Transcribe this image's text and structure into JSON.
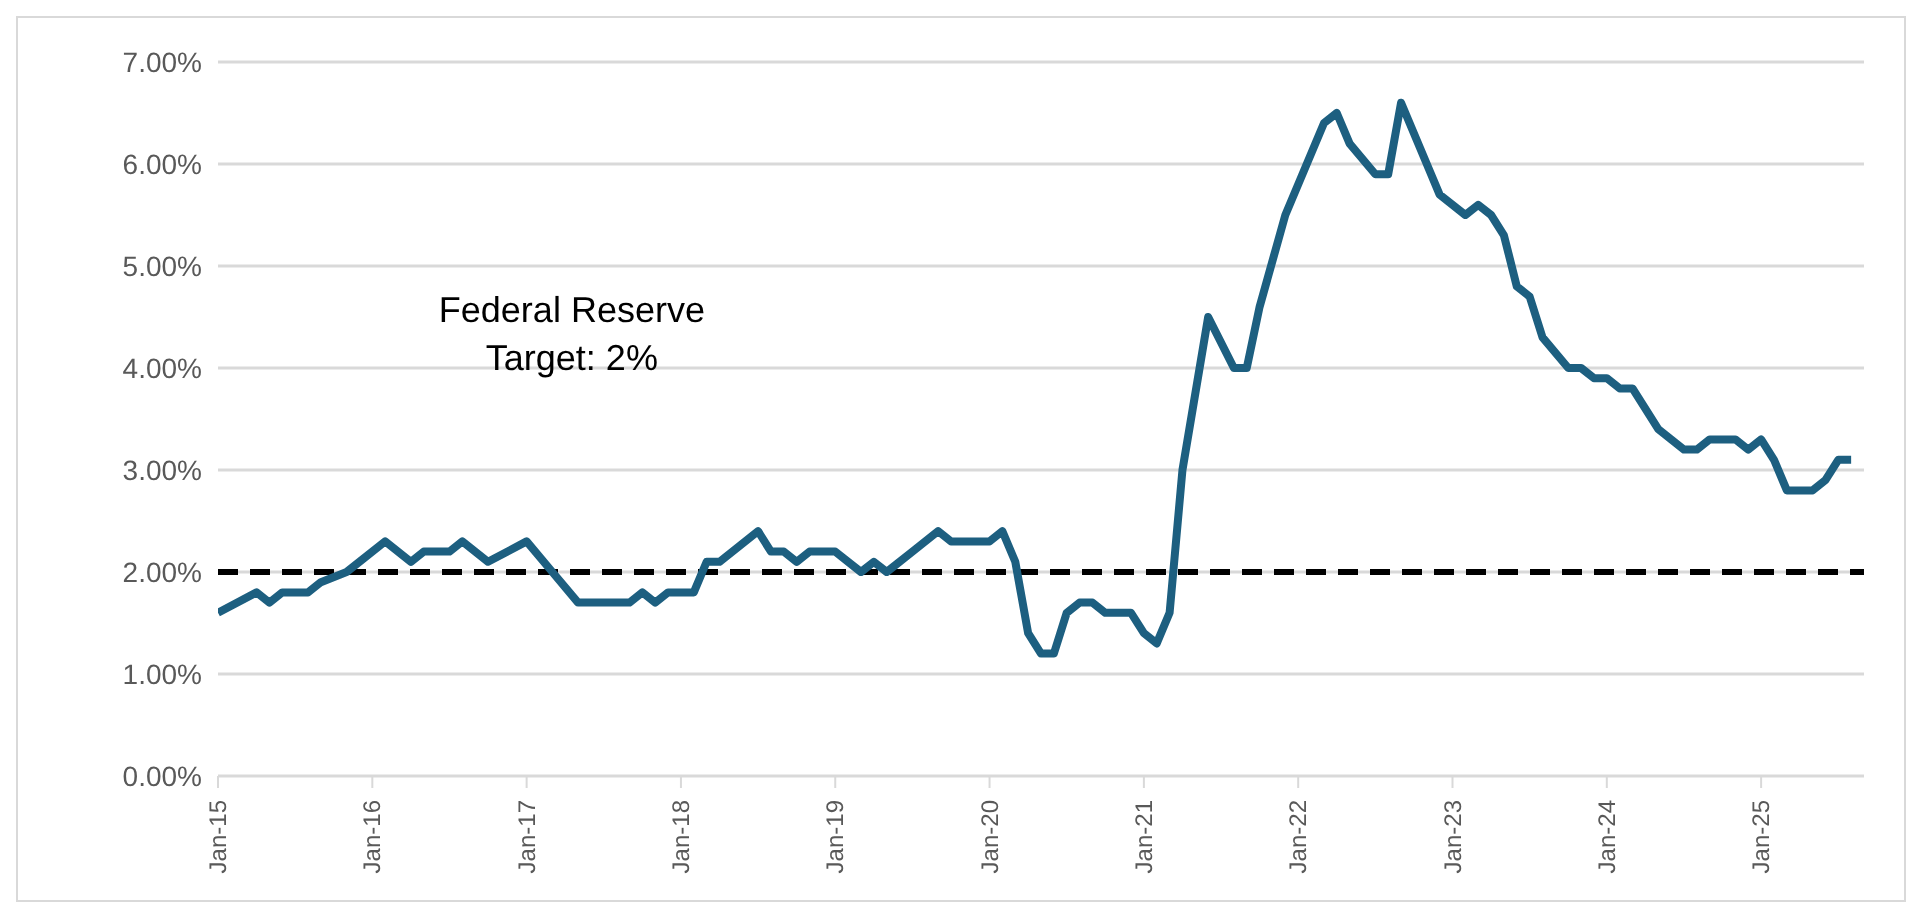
{
  "chart_data": {
    "type": "line",
    "x": [
      "2015-01",
      "2015-04",
      "2015-05",
      "2015-06",
      "2015-08",
      "2015-09",
      "2015-11",
      "2016-02",
      "2016-04",
      "2016-05",
      "2016-07",
      "2016-08",
      "2016-10",
      "2017-01",
      "2017-03",
      "2017-05",
      "2017-09",
      "2017-10",
      "2017-11",
      "2017-12",
      "2018-02",
      "2018-03",
      "2018-04",
      "2018-07",
      "2018-08",
      "2018-09",
      "2018-10",
      "2018-11",
      "2019-01",
      "2019-03",
      "2019-04",
      "2019-05",
      "2019-07",
      "2019-09",
      "2019-10",
      "2020-01",
      "2020-02",
      "2020-03",
      "2020-04",
      "2020-05",
      "2020-06",
      "2020-07",
      "2020-08",
      "2020-09",
      "2020-10",
      "2020-12",
      "2021-01",
      "2021-02",
      "2021-03",
      "2021-04",
      "2021-06",
      "2021-08",
      "2021-09",
      "2021-10",
      "2021-12",
      "2022-03",
      "2022-04",
      "2022-05",
      "2022-07",
      "2022-08",
      "2022-09",
      "2022-11",
      "2022-12",
      "2023-02",
      "2023-03",
      "2023-04",
      "2023-05",
      "2023-06",
      "2023-07",
      "2023-08",
      "2023-10",
      "2023-11",
      "2023-12",
      "2024-01",
      "2024-02",
      "2024-03",
      "2024-05",
      "2024-07",
      "2024-08",
      "2024-09",
      "2024-11",
      "2024-12",
      "2025-01",
      "2025-02",
      "2025-03",
      "2025-05",
      "2025-06",
      "2025-07",
      "2025-08"
    ],
    "series": [
      {
        "color": "#1d5f80",
        "values": [
          1.6,
          1.8,
          1.7,
          1.8,
          1.8,
          1.9,
          2.0,
          2.3,
          2.1,
          2.2,
          2.2,
          2.3,
          2.1,
          2.3,
          2.0,
          1.7,
          1.7,
          1.8,
          1.7,
          1.8,
          1.8,
          2.1,
          2.1,
          2.4,
          2.2,
          2.2,
          2.1,
          2.2,
          2.2,
          2.0,
          2.1,
          2.0,
          2.2,
          2.4,
          2.3,
          2.3,
          2.4,
          2.1,
          1.4,
          1.2,
          1.2,
          1.6,
          1.7,
          1.7,
          1.6,
          1.6,
          1.4,
          1.3,
          1.6,
          3.0,
          4.5,
          4.0,
          4.0,
          4.6,
          5.5,
          6.4,
          6.5,
          6.2,
          5.9,
          5.9,
          6.6,
          6.0,
          5.7,
          5.5,
          5.6,
          5.5,
          5.3,
          4.8,
          4.7,
          4.3,
          4.0,
          4.0,
          3.9,
          3.9,
          3.8,
          3.8,
          3.4,
          3.2,
          3.2,
          3.3,
          3.3,
          3.2,
          3.3,
          3.1,
          2.8,
          2.8,
          2.9,
          3.1,
          3.1
        ]
      }
    ],
    "xlim": [
      "2015-01",
      "2025-09"
    ],
    "xticks": [
      {
        "value": "2015-01",
        "label": "Jan-15"
      },
      {
        "value": "2016-01",
        "label": "Jan-16"
      },
      {
        "value": "2017-01",
        "label": "Jan-17"
      },
      {
        "value": "2018-01",
        "label": "Jan-18"
      },
      {
        "value": "2019-01",
        "label": "Jan-19"
      },
      {
        "value": "2020-01",
        "label": "Jan-20"
      },
      {
        "value": "2021-01",
        "label": "Jan-21"
      },
      {
        "value": "2022-01",
        "label": "Jan-22"
      },
      {
        "value": "2023-01",
        "label": "Jan-23"
      },
      {
        "value": "2024-01",
        "label": "Jan-24"
      },
      {
        "value": "2025-01",
        "label": "Jan-25"
      }
    ],
    "ylim": [
      0,
      7
    ],
    "yticks": [
      {
        "value": 0,
        "label": "0.00%"
      },
      {
        "value": 1,
        "label": "1.00%"
      },
      {
        "value": 2,
        "label": "2.00%"
      },
      {
        "value": 3,
        "label": "3.00%"
      },
      {
        "value": 4,
        "label": "4.00%"
      },
      {
        "value": 5,
        "label": "5.00%"
      },
      {
        "value": 6,
        "label": "6.00%"
      },
      {
        "value": 7,
        "label": "7.00%"
      }
    ],
    "ref_lines": [
      {
        "axis": "y",
        "value": 2,
        "label": "Federal Reserve\nTarget: 2%",
        "color": "#000000",
        "line_style": "dashed"
      }
    ],
    "grid": "y",
    "legend": false,
    "marker": "none",
    "line_style": "solid"
  }
}
